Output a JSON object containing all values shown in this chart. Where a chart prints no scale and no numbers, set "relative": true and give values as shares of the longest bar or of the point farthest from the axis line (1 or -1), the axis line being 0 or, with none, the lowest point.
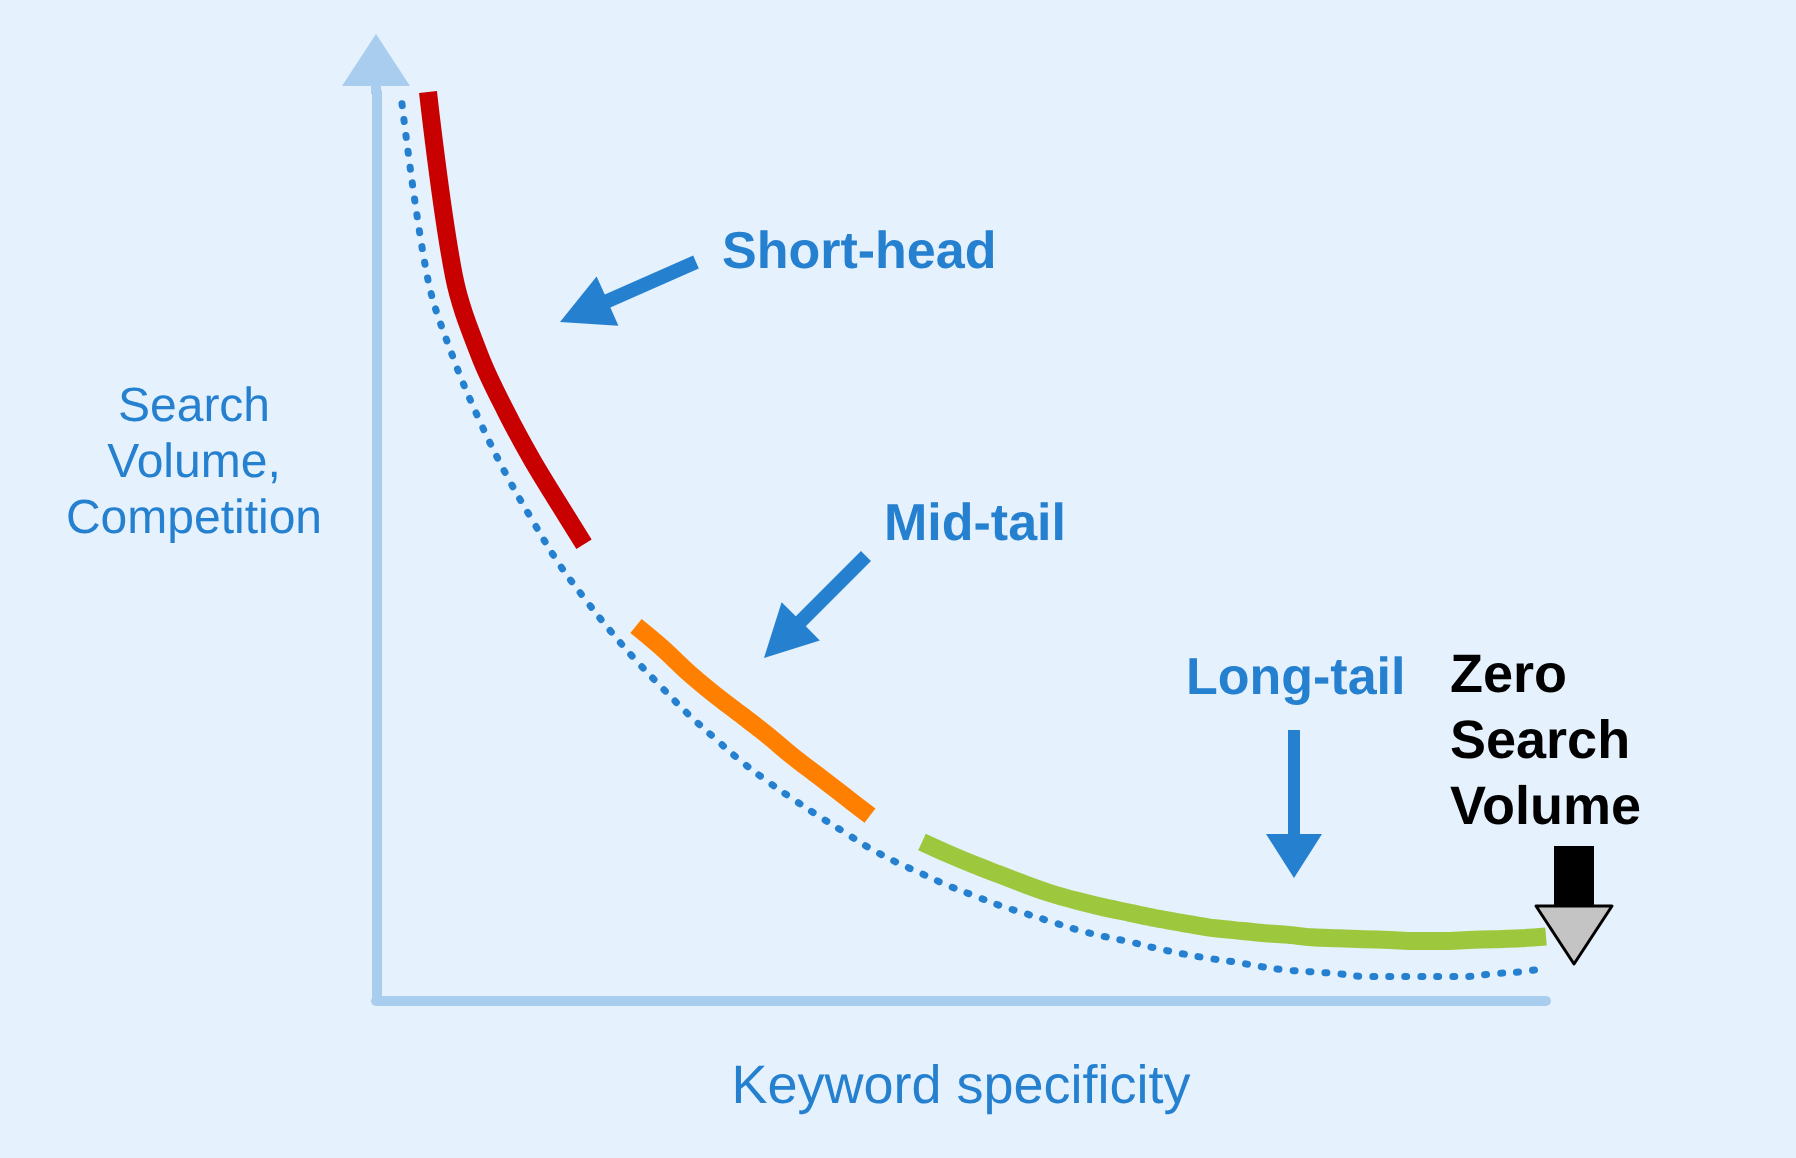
{
  "chart_data": {
    "type": "line",
    "relative": true,
    "xlabel": "Keyword specificity",
    "ylabel": "Search\nVolume,\nCompetition",
    "marker": "none",
    "annotations": [
      "Short-head",
      "Mid-tail",
      "Long-tail",
      "Zero\nSearch\nVolume"
    ],
    "categories": [
      null,
      null,
      null,
      null,
      null,
      null,
      null,
      null,
      null,
      null,
      null,
      null,
      null,
      null,
      null,
      null,
      null,
      null,
      null,
      null,
      null,
      null,
      null,
      null,
      null,
      null,
      null,
      null,
      null,
      null,
      null,
      null,
      null,
      null,
      null,
      null,
      null,
      null,
      null,
      null,
      null,
      null,
      null,
      null,
      null,
      null
    ],
    "series": [
      {
        "color": "#2580d0",
        "line_style": "dotted",
        "values": [
          null,
          0.987,
          0.793,
          0.705,
          0.637,
          0.579,
          0.529,
          0.482,
          0.443,
          0.407,
          0.374,
          0.344,
          0.315,
          0.289,
          0.264,
          0.242,
          0.222,
          0.203,
          0.185,
          0.167,
          0.152,
          0.139,
          0.126,
          0.115,
          0.104,
          0.095,
          0.086,
          0.077,
          0.07,
          0.064,
          0.057,
          0.051,
          0.046,
          0.042,
          0.037,
          0.033,
          0.031,
          0.029,
          0.026,
          0.026,
          0.026,
          0.026,
          0.026,
          0.029,
          0.031,
          0.035
        ]
      },
      {
        "color": "#c80000",
        "line_style": "solid",
        "values": [
          null,
          null,
          1.0,
          0.797,
          0.709,
          0.648,
          0.595,
          0.548,
          0.502,
          null,
          null,
          null,
          null,
          null,
          null,
          null,
          null,
          null,
          null,
          null,
          null,
          null,
          null,
          null,
          null,
          null,
          null,
          null,
          null,
          null,
          null,
          null,
          null,
          null,
          null,
          null,
          null,
          null,
          null,
          null,
          null,
          null,
          null,
          null,
          null,
          null
        ]
      },
      {
        "color": "#ff8000",
        "line_style": "solid",
        "values": [
          null,
          null,
          null,
          null,
          null,
          null,
          null,
          null,
          null,
          null,
          0.412,
          0.388,
          0.361,
          0.337,
          0.315,
          0.293,
          0.269,
          0.247,
          0.225,
          0.203,
          null,
          null,
          null,
          null,
          null,
          null,
          null,
          null,
          null,
          null,
          null,
          null,
          null,
          null,
          null,
          null,
          null,
          null,
          null,
          null,
          null,
          null,
          null,
          null,
          null,
          null
        ]
      },
      {
        "color": "#9dc83e",
        "line_style": "solid",
        "values": [
          null,
          null,
          null,
          null,
          null,
          null,
          null,
          null,
          null,
          null,
          null,
          null,
          null,
          null,
          null,
          null,
          null,
          null,
          null,
          null,
          null,
          0.174,
          0.161,
          0.149,
          0.138,
          0.127,
          0.117,
          0.109,
          0.102,
          0.096,
          0.09,
          0.085,
          0.08,
          0.077,
          0.074,
          0.072,
          0.069,
          0.068,
          0.067,
          0.066,
          0.065,
          0.065,
          0.066,
          0.067,
          0.068,
          0.07
        ]
      }
    ]
  }
}
